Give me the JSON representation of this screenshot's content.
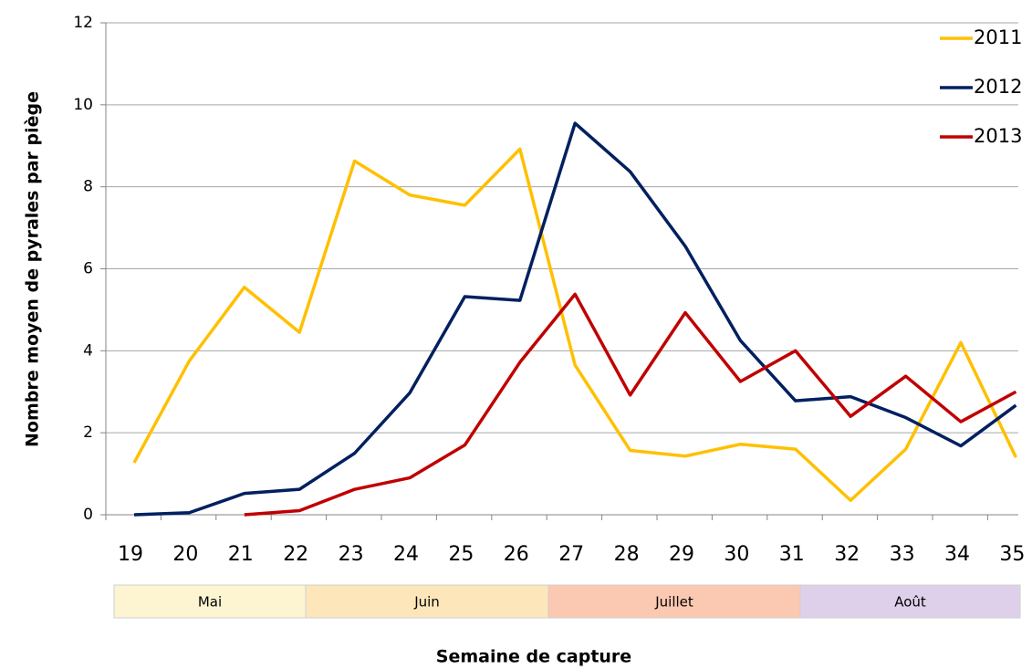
{
  "chart_data": {
    "type": "line",
    "xlabel": "Semaine de capture",
    "ylabel": "Nombre moyen de pyrales par piège",
    "categories": [
      "19",
      "20",
      "21",
      "22",
      "23",
      "24",
      "25",
      "26",
      "27",
      "28",
      "29",
      "30",
      "31",
      "32",
      "33",
      "34",
      "35"
    ],
    "series": [
      {
        "name": "2011",
        "color": "#ffc000",
        "values": [
          1.27,
          3.75,
          5.55,
          4.45,
          8.63,
          7.8,
          7.55,
          8.92,
          3.65,
          1.57,
          1.43,
          1.72,
          1.6,
          0.35,
          1.6,
          4.2,
          1.4
        ]
      },
      {
        "name": "2012",
        "color": "#002060",
        "values": [
          0,
          0.05,
          0.52,
          0.62,
          1.5,
          2.97,
          5.32,
          5.23,
          9.55,
          8.37,
          6.55,
          4.25,
          2.78,
          2.88,
          2.37,
          1.68,
          2.67
        ]
      },
      {
        "name": "2013",
        "color": "#c00000",
        "values": [
          null,
          null,
          0,
          0.1,
          0.62,
          0.9,
          1.7,
          3.72,
          5.38,
          2.92,
          4.93,
          3.25,
          4.0,
          2.4,
          3.38,
          2.27,
          3.0
        ]
      }
    ],
    "ylim": [
      0,
      12
    ],
    "yticks": [
      0,
      2,
      4,
      6,
      8,
      10,
      12
    ],
    "grid": true,
    "legend": "right",
    "months": [
      {
        "label": "Mai",
        "color": "#fdf5d2"
      },
      {
        "label": "Juin",
        "color": "#fde6b9"
      },
      {
        "label": "Juillet",
        "color": "#fbc8b1"
      },
      {
        "label": "Août",
        "color": "#ded0ea"
      }
    ]
  }
}
